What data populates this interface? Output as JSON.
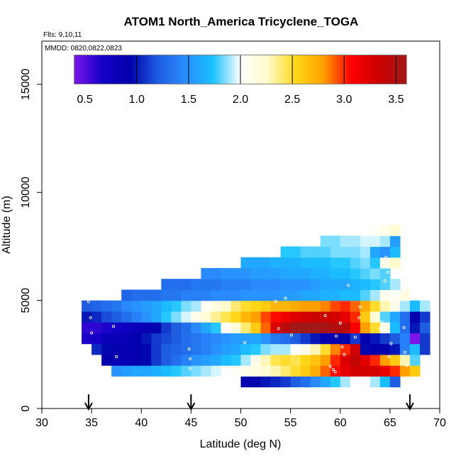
{
  "chart_data": {
    "type": "heatmap",
    "title": "ATOM1 North_America Tricyclene_TOGA",
    "flights_label": "Flts: 9,10,11",
    "dates_label": "MMDD: 0820,0822,0823",
    "xlabel": "Latitude (deg N)",
    "ylabel": "Altitude (m)",
    "xlim": [
      30,
      70
    ],
    "ylim": [
      0,
      17000
    ],
    "x_ticks": [
      "30",
      "35",
      "40",
      "45",
      "50",
      "55",
      "60",
      "65",
      "70"
    ],
    "y_ticks": [
      "0",
      "5000",
      "10000",
      "15000"
    ],
    "colorbar": {
      "range": [
        0.4,
        3.6
      ],
      "tick_values": [
        0.5,
        1.0,
        1.5,
        2.0,
        2.5,
        3.0,
        3.5
      ],
      "tick_labels": [
        "0.5",
        "1.0",
        "1.5",
        "2.0",
        "2.5",
        "3.0",
        "3.5"
      ],
      "colors": [
        "#7b16e8",
        "#1600c8",
        "#0000aa",
        "#1e5ce0",
        "#2a8cff",
        "#18c2ff",
        "#ffffff",
        "#fffac8",
        "#ffd818",
        "#ffa000",
        "#ff0000",
        "#cc0000",
        "#a01818"
      ]
    },
    "bin_width_deg": 1,
    "bin_height_m": 500,
    "rows": [
      {
        "alt": 1000,
        "lat0": 50,
        "values": [
          0.9,
          0.95,
          1.0,
          1.05,
          1.1,
          1.2,
          1.3,
          1.45,
          1.6,
          1.75,
          1.9,
          2.0,
          2.0,
          1.9,
          1.7,
          1.2
        ]
      },
      {
        "alt": 1500,
        "lat0": 37,
        "values": [
          1.5,
          1.55,
          1.6,
          1.6,
          1.65,
          1.7,
          1.75,
          1.8,
          1.85,
          1.9,
          1.95,
          2.0,
          2.05,
          2.1,
          2.15,
          2.2,
          2.3,
          2.4,
          2.5,
          2.6,
          2.75,
          2.9,
          3.05,
          3.2,
          3.3,
          3.3,
          3.3,
          3.2,
          3.0,
          2.8,
          2.6
        ]
      },
      {
        "alt": 2000,
        "lat0": 36,
        "values": [
          0.9,
          0.85,
          0.85,
          0.9,
          0.95,
          1.1,
          1.2,
          1.3,
          1.4,
          1.5,
          1.55,
          1.6,
          1.7,
          1.75,
          1.9,
          2.1,
          2.3,
          2.45,
          2.5,
          2.45,
          2.55,
          2.65,
          2.8,
          3.0,
          3.25,
          3.4,
          3.2,
          3.0,
          2.8,
          2.6,
          2.3,
          1.8
        ]
      },
      {
        "alt": 2500,
        "lat0": 35,
        "values": [
          1.05,
          0.95,
          0.9,
          0.85,
          0.9,
          0.95,
          1.1,
          1.2,
          1.25,
          1.3,
          1.35,
          1.4,
          1.5,
          1.55,
          1.6,
          1.7,
          1.75,
          1.85,
          1.9,
          1.9,
          2.0,
          2.1,
          2.3,
          2.5,
          2.85,
          3.0,
          3.3,
          0.95,
          0.9,
          0.9,
          1.0,
          1.4,
          1.7,
          1.1
        ]
      },
      {
        "alt": 3000,
        "lat0": 34,
        "values": [
          0.65,
          0.7,
          0.8,
          0.8,
          0.85,
          0.9,
          1.0,
          1.1,
          1.15,
          1.2,
          1.3,
          1.35,
          1.4,
          1.45,
          1.5,
          1.55,
          1.55,
          1.6,
          1.5,
          1.35,
          1.3,
          1.2,
          1.1,
          1.0,
          0.9,
          0.85,
          0.95,
          1.1,
          0.9,
          1.0,
          1.1,
          1.2,
          1.4,
          0.4,
          1.1
        ]
      },
      {
        "alt": 3500,
        "lat0": 34,
        "values": [
          0.6,
          0.6,
          0.65,
          0.7,
          0.75,
          0.8,
          0.85,
          0.95,
          1.1,
          1.2,
          1.3,
          1.45,
          1.6,
          1.75,
          2.0,
          2.2,
          2.4,
          2.6,
          2.9,
          3.25,
          3.45,
          3.6,
          3.6,
          3.6,
          3.55,
          3.5,
          3.45,
          3.1,
          2.8,
          2.5,
          2.1,
          1.7,
          1.3,
          1.0,
          1.2
        ]
      },
      {
        "alt": 4000,
        "lat0": 34,
        "values": [
          1.0,
          1.05,
          1.15,
          1.2,
          1.3,
          1.4,
          1.5,
          1.6,
          1.75,
          1.85,
          1.95,
          2.1,
          2.2,
          2.35,
          2.45,
          2.55,
          2.7,
          2.8,
          2.95,
          3.05,
          3.15,
          3.25,
          3.3,
          3.35,
          3.35,
          3.3,
          3.2,
          3.0,
          2.6,
          2.2,
          1.8,
          1.6,
          1.3,
          0.9,
          1.1
        ]
      },
      {
        "alt": 4500,
        "lat0": 34,
        "values": [
          1.2,
          1.25,
          1.3,
          1.35,
          1.45,
          1.5,
          1.55,
          1.6,
          1.7,
          1.75,
          1.85,
          1.9,
          2.05,
          2.15,
          2.25,
          2.4,
          2.5,
          2.55,
          2.6,
          2.7,
          2.7,
          2.75,
          2.8,
          2.8,
          2.85,
          2.95,
          3.0,
          2.9,
          2.75,
          2.5,
          2.3,
          2.1,
          1.9,
          1.7,
          1.9
        ]
      },
      {
        "alt": 5000,
        "lat0": 38,
        "values": [
          1.25,
          1.3,
          1.3,
          1.3,
          1.35,
          1.35,
          1.4,
          1.4,
          1.4,
          1.45,
          1.45,
          1.45,
          1.5,
          1.5,
          1.5,
          1.5,
          1.55,
          1.55,
          1.6,
          1.6,
          1.65,
          1.65,
          1.7,
          1.7,
          1.8,
          1.9,
          2.1,
          2.05,
          2.15
        ]
      },
      {
        "alt": 5500,
        "lat0": 42,
        "values": [
          1.3,
          1.3,
          1.3,
          1.35,
          1.35,
          1.35,
          1.4,
          1.4,
          1.4,
          1.45,
          1.45,
          1.45,
          1.5,
          1.5,
          1.5,
          1.55,
          1.6,
          1.6,
          1.6,
          1.65,
          1.7,
          1.75,
          1.8,
          1.9
        ]
      },
      {
        "alt": 6000,
        "lat0": 46,
        "values": [
          1.45,
          1.45,
          1.5,
          1.5,
          1.5,
          1.55,
          1.55,
          1.55,
          1.6,
          1.6,
          1.6,
          1.65,
          1.65,
          1.7,
          1.7,
          1.75,
          1.8,
          1.85,
          1.8
        ]
      },
      {
        "alt": 6500,
        "lat0": 50,
        "values": [
          1.6,
          1.6,
          1.6,
          1.65,
          1.65,
          1.65,
          1.7,
          1.7,
          1.7,
          1.75,
          1.75,
          1.8,
          1.85,
          1.75,
          2.1,
          2.25
        ]
      },
      {
        "alt": 7000,
        "lat0": 54,
        "values": [
          1.75,
          1.75,
          1.8,
          1.8,
          1.8,
          1.85,
          1.85,
          1.85,
          1.9,
          1.6,
          1.5,
          1.7
        ]
      },
      {
        "alt": 7500,
        "lat0": 58,
        "values": [
          1.85,
          1.85,
          1.9,
          1.9,
          1.95,
          1.95,
          1.9,
          1.55
        ]
      },
      {
        "alt": 8000,
        "lat0": 62,
        "values": [
          2.0,
          2.05,
          2.1,
          2.2
        ]
      }
    ],
    "markers_lat_deg": [
      34.7,
      45.0,
      67.0
    ],
    "samples": [
      [
        34.7,
        4950
      ],
      [
        34.9,
        4200
      ],
      [
        35.0,
        3500
      ],
      [
        37.2,
        3800
      ],
      [
        37.5,
        2400
      ],
      [
        44.8,
        2750
      ],
      [
        44.9,
        2300
      ],
      [
        44.9,
        1850
      ],
      [
        50.4,
        3050
      ],
      [
        52.4,
        2200
      ],
      [
        53.5,
        4950
      ],
      [
        54.5,
        5100
      ],
      [
        53.8,
        3700
      ],
      [
        55.1,
        3400
      ],
      [
        58.5,
        4300
      ],
      [
        59.0,
        1950
      ],
      [
        59.3,
        1800
      ],
      [
        59.5,
        1700
      ],
      [
        59.6,
        3350
      ],
      [
        60.0,
        3950
      ],
      [
        60.2,
        2850
      ],
      [
        60.4,
        2500
      ],
      [
        60.8,
        5700
      ],
      [
        61.5,
        3300
      ],
      [
        61.9,
        4200
      ],
      [
        62.0,
        4700
      ],
      [
        64.2,
        4000
      ],
      [
        64.3,
        5100
      ],
      [
        64.5,
        5900
      ],
      [
        64.6,
        7000
      ],
      [
        64.8,
        6300
      ],
      [
        64.9,
        2400
      ],
      [
        65.1,
        3000
      ],
      [
        65.2,
        900
      ],
      [
        66.3,
        5400
      ],
      [
        66.4,
        3750
      ],
      [
        66.5,
        2600
      ],
      [
        66.7,
        2000
      ],
      [
        64.0,
        3700
      ],
      [
        64.6,
        8500
      ]
    ]
  }
}
